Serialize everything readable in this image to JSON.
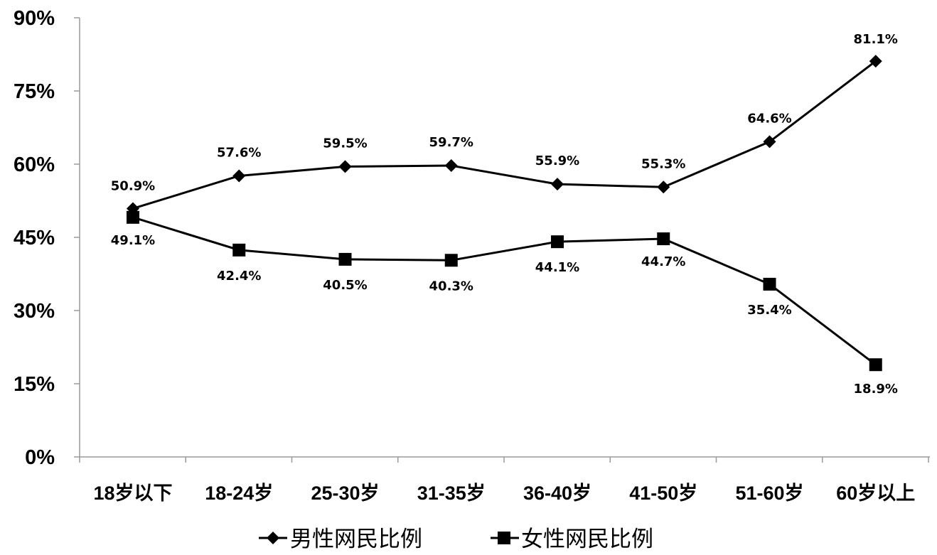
{
  "chart_data": {
    "type": "line",
    "title": "",
    "xlabel": "",
    "ylabel": "",
    "categories": [
      "18岁以下",
      "18-24岁",
      "25-30岁",
      "31-35岁",
      "36-40岁",
      "41-50岁",
      "51-60岁",
      "60岁以上"
    ],
    "series": [
      {
        "name": "男性网民比例",
        "marker": "diamond",
        "color": "#000000",
        "values": [
          50.9,
          57.6,
          59.5,
          59.7,
          55.9,
          55.3,
          64.6,
          81.1
        ],
        "labels": [
          "50.9%",
          "57.6%",
          "59.5%",
          "59.7%",
          "55.9%",
          "55.3%",
          "64.6%",
          "81.1%"
        ]
      },
      {
        "name": "女性网民比例",
        "marker": "square",
        "color": "#000000",
        "values": [
          49.1,
          42.4,
          40.5,
          40.3,
          44.1,
          44.7,
          35.4,
          18.9
        ],
        "labels": [
          "49.1%",
          "42.4%",
          "40.5%",
          "40.3%",
          "44.1%",
          "44.7%",
          "35.4%",
          "18.9%"
        ]
      }
    ],
    "ylim": [
      0,
      90
    ],
    "yticks": [
      "0%",
      "15%",
      "30%",
      "45%",
      "60%",
      "75%",
      "90%"
    ],
    "ytick_values": [
      0,
      15,
      30,
      45,
      60,
      75,
      90
    ],
    "grid": false,
    "legend_position": "bottom"
  }
}
